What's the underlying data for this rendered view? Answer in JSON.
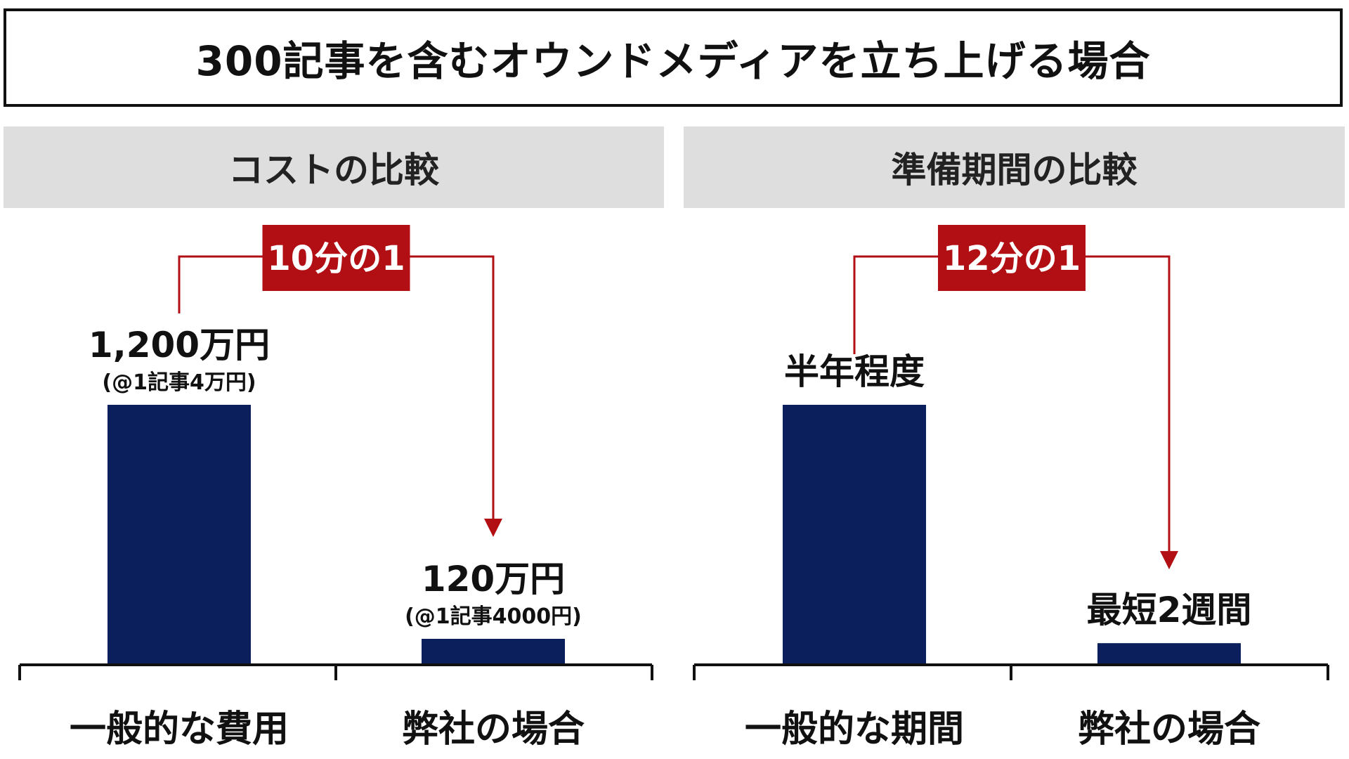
{
  "title": "300記事を含むオウンドメディアを立ち上げる場合",
  "colors": {
    "bar": "#0b1f5c",
    "accent": "#b20f14",
    "header_bg": "#dedede",
    "axis": "#111111"
  },
  "chart_data": [
    {
      "type": "bar",
      "title": "コストの比較",
      "categories": [
        "一般的な費用",
        "弊社の場合"
      ],
      "values": [
        1200,
        120
      ],
      "value_labels": [
        "1,200万円",
        "120万円"
      ],
      "sub_labels": [
        "(@1記事4万円)",
        "(@1記事4000円)"
      ],
      "ratio_label": "10分の1",
      "ylim": [
        0,
        1200
      ],
      "grid": false
    },
    {
      "type": "bar",
      "title": "準備期間の比較",
      "categories": [
        "一般的な期間",
        "弊社の場合"
      ],
      "values": [
        6,
        0.5
      ],
      "value_labels": [
        "半年程度",
        "最短2週間"
      ],
      "sub_labels": [
        "",
        ""
      ],
      "ratio_label": "12分の1",
      "ylim": [
        0,
        6
      ],
      "grid": false
    }
  ]
}
